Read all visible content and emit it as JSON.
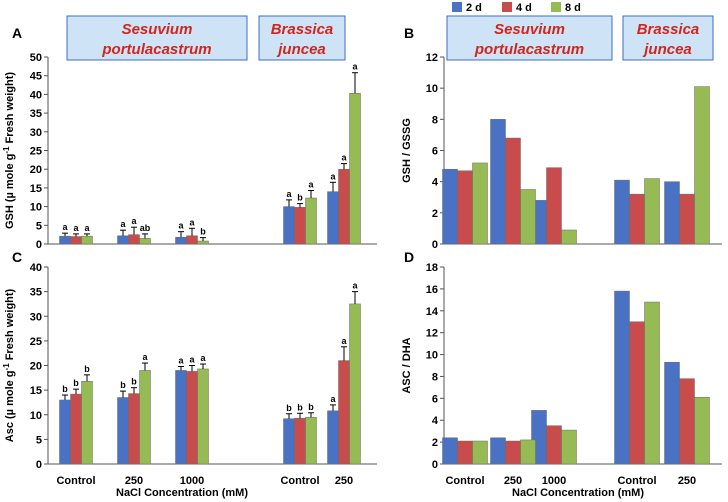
{
  "colors": {
    "2d": "#4a72c4",
    "4d": "#c84c4c",
    "8d": "#96bb55",
    "banner_fill": "#cfe3f6",
    "banner_stroke": "#3d6fc2",
    "species_text": "#d0261d"
  },
  "legend": [
    "2 d",
    "4 d",
    "8 d"
  ],
  "species": {
    "sesuvium": [
      "Sesuvium",
      "portulacastrum"
    ],
    "brassica": [
      "Brassica",
      "juncea"
    ]
  },
  "xlabel": "NaCl Concentration (mM)",
  "chart_data": [
    {
      "panel": "A",
      "type": "bar",
      "ylabel": "GSH (µ mole g-1 Fresh weight)",
      "ylim": [
        0,
        50
      ],
      "ytick_step": 5,
      "categories": [
        "Control",
        "250",
        "1000",
        "Control",
        "250"
      ],
      "series": [
        {
          "name": "2 d",
          "values": [
            2.1,
            2.2,
            1.8,
            10.0,
            14.0
          ],
          "errors": [
            0.8,
            1.5,
            1.5,
            1.8,
            2.5
          ],
          "letters": [
            "a",
            "a",
            "a",
            "a",
            "a"
          ]
        },
        {
          "name": "4 d",
          "values": [
            2.0,
            2.5,
            2.2,
            9.8,
            20.0
          ],
          "errors": [
            0.7,
            2.0,
            2.0,
            1.0,
            1.5
          ],
          "letters": [
            "a",
            "a",
            "a",
            "b",
            "a"
          ]
        },
        {
          "name": "8 d",
          "values": [
            2.1,
            1.5,
            0.8,
            12.3,
            40.3
          ],
          "errors": [
            0.6,
            1.2,
            0.9,
            2.0,
            5.5
          ],
          "letters": [
            "a",
            "ab",
            "b",
            "a",
            "a"
          ]
        }
      ]
    },
    {
      "panel": "B",
      "type": "bar",
      "ylabel": "GSH / GSSG",
      "ylim": [
        0,
        12
      ],
      "ytick_step": 2,
      "categories": [
        "Control",
        "250",
        "1000",
        "Control",
        "250"
      ],
      "series": [
        {
          "name": "2 d",
          "values": [
            4.8,
            8.0,
            2.8,
            4.1,
            4.0
          ]
        },
        {
          "name": "4 d",
          "values": [
            4.7,
            6.8,
            4.9,
            3.2,
            3.2
          ]
        },
        {
          "name": "8 d",
          "values": [
            5.2,
            3.5,
            0.9,
            4.2,
            10.1
          ]
        }
      ]
    },
    {
      "panel": "C",
      "type": "bar",
      "ylabel": "Asc (µ mole g-1 Fresh weight)",
      "ylim": [
        0,
        40
      ],
      "ytick_step": 5,
      "categories": [
        "Control",
        "250",
        "1000",
        "Control",
        "250"
      ],
      "series": [
        {
          "name": "2 d",
          "values": [
            13.0,
            13.5,
            19.0,
            9.2,
            10.8
          ],
          "errors": [
            1.0,
            1.3,
            0.8,
            1.0,
            1.2
          ],
          "letters": [
            "b",
            "b",
            "a",
            "b",
            "a"
          ]
        },
        {
          "name": "4 d",
          "values": [
            14.2,
            14.3,
            18.8,
            9.3,
            21.0
          ],
          "errors": [
            1.0,
            1.2,
            1.2,
            1.0,
            2.8
          ],
          "letters": [
            "b",
            "b",
            "a",
            "b",
            "a"
          ]
        },
        {
          "name": "8 d",
          "values": [
            16.8,
            19.0,
            19.3,
            9.5,
            32.5
          ],
          "errors": [
            1.3,
            1.5,
            1.0,
            0.9,
            2.5
          ],
          "letters": [
            "b",
            "a",
            "a",
            "b",
            "a"
          ]
        }
      ]
    },
    {
      "panel": "D",
      "type": "bar",
      "ylabel": "ASC / DHA",
      "ylim": [
        0,
        18
      ],
      "ytick_step": 2,
      "categories": [
        "Control",
        "250",
        "1000",
        "Control",
        "250"
      ],
      "series": [
        {
          "name": "2 d",
          "values": [
            2.4,
            2.4,
            4.9,
            15.8,
            9.3
          ]
        },
        {
          "name": "4 d",
          "values": [
            2.1,
            2.1,
            3.5,
            13.0,
            7.8
          ]
        },
        {
          "name": "8 d",
          "values": [
            2.1,
            2.2,
            3.1,
            14.8,
            6.1
          ]
        }
      ]
    }
  ]
}
